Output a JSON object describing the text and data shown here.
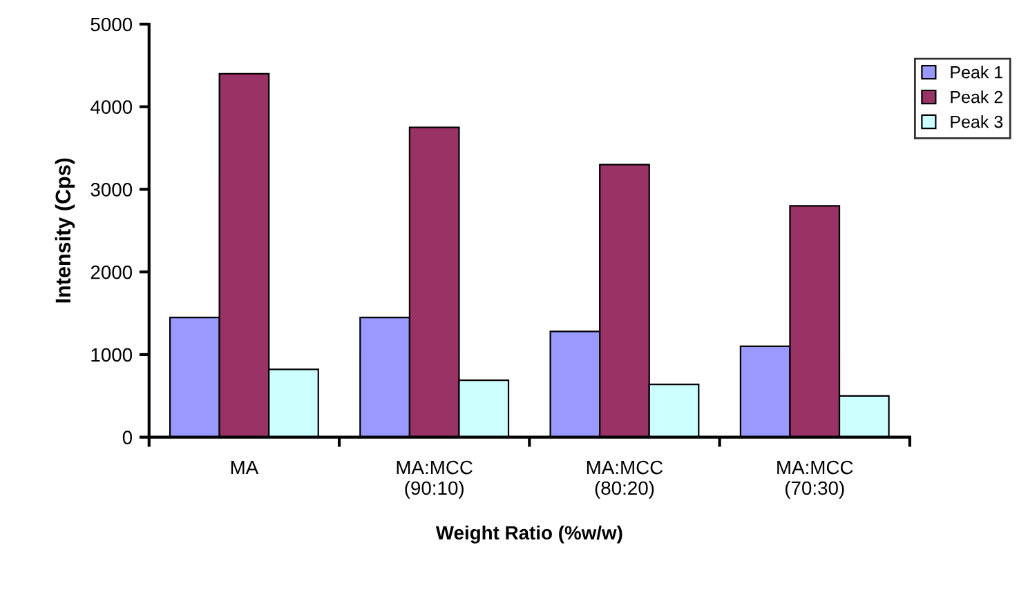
{
  "chart_data": {
    "type": "bar",
    "xlabel": "Weight Ratio (%w/w)",
    "ylabel": "Intensity (Cps)",
    "categories": [
      "MA",
      "MA:MCC\n(90:10)",
      "MA:MCC\n(80:20)",
      "MA:MCC\n(70:30)"
    ],
    "series": [
      {
        "name": "Peak 1",
        "color": "#9999ff",
        "values": [
          1450,
          1450,
          1280,
          1100
        ]
      },
      {
        "name": "Peak 2",
        "color": "#993366",
        "values": [
          4400,
          3750,
          3300,
          2800
        ]
      },
      {
        "name": "Peak 3",
        "color": "#ccffff",
        "values": [
          820,
          690,
          640,
          500
        ]
      }
    ],
    "ylim": [
      0,
      5000
    ],
    "yticks": [
      0,
      1000,
      2000,
      3000,
      4000,
      5000
    ],
    "grid": false,
    "legend": "right"
  }
}
